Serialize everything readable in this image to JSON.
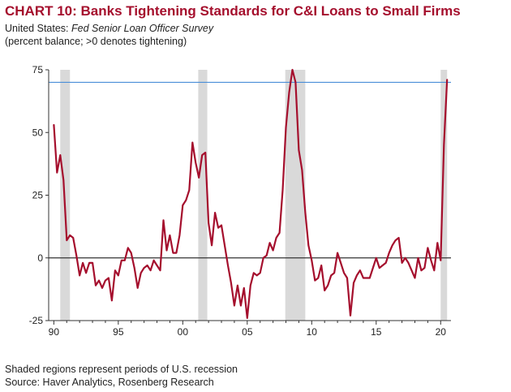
{
  "header": {
    "title": "CHART 10: Banks Tightening Standards for C&I Loans to Small Firms",
    "subtitle_prefix": "United States: ",
    "subtitle_source": "Fed Senior Loan Officer Survey",
    "subtitle_units": "(percent balance; >0 denotes tightening)"
  },
  "footer": {
    "note": "Shaded regions represent periods of U.S. recession",
    "source": "Source: Haver Analytics, Rosenberg Research"
  },
  "colors": {
    "series": "#a50f2d",
    "reference_line": "#4a8ed8",
    "recession": "#d9d9d9",
    "zero_line": "#333333",
    "title": "#a50f2d"
  },
  "chart_data": {
    "type": "line",
    "title": "CHART 10: Banks Tightening Standards for C&I Loans to Small Firms",
    "xlabel": "",
    "ylabel": "",
    "xlim": [
      1989.6,
      2020.8
    ],
    "ylim": [
      -25,
      75
    ],
    "x_tick_labels": [
      "90",
      "95",
      "00",
      "05",
      "10",
      "15",
      "20"
    ],
    "x_tick_values": [
      1990,
      1995,
      2000,
      2005,
      2010,
      2015,
      2020
    ],
    "y_tick_labels": [
      "75",
      "50",
      "25",
      "0",
      "-25"
    ],
    "y_tick_values": [
      75,
      50,
      25,
      0,
      -25
    ],
    "reference_line": 70,
    "recessions": [
      [
        1990.5,
        1991.25
      ],
      [
        2001.2,
        2001.9
      ],
      [
        2007.95,
        2009.5
      ],
      [
        2020.0,
        2020.5
      ]
    ],
    "series": [
      {
        "x": [
          1990.0,
          1990.25,
          1990.5,
          1990.75,
          1991.0,
          1991.25,
          1991.5,
          1991.75,
          1992.0,
          1992.25,
          1992.5,
          1992.75,
          1993.0,
          1993.25,
          1993.5,
          1993.75,
          1994.0,
          1994.25,
          1994.5,
          1994.75,
          1995.0,
          1995.25,
          1995.5,
          1995.75,
          1996.0,
          1996.25,
          1996.5,
          1996.75,
          1997.0,
          1997.25,
          1997.5,
          1997.75,
          1998.0,
          1998.25,
          1998.5,
          1998.75,
          1999.0,
          1999.25,
          1999.5,
          1999.75,
          2000.0,
          2000.25,
          2000.5,
          2000.75,
          2001.0,
          2001.25,
          2001.5,
          2001.75,
          2002.0,
          2002.25,
          2002.5,
          2002.75,
          2003.0,
          2003.25,
          2003.5,
          2003.75,
          2004.0,
          2004.25,
          2004.5,
          2004.75,
          2005.0,
          2005.25,
          2005.5,
          2005.75,
          2006.0,
          2006.25,
          2006.5,
          2006.75,
          2007.0,
          2007.25,
          2007.5,
          2007.75,
          2008.0,
          2008.25,
          2008.5,
          2008.75,
          2009.0,
          2009.25,
          2009.5,
          2009.75,
          2010.0,
          2010.25,
          2010.5,
          2010.75,
          2011.0,
          2011.25,
          2011.5,
          2011.75,
          2012.0,
          2012.25,
          2012.5,
          2012.75,
          2013.0,
          2013.25,
          2013.5,
          2013.75,
          2014.0,
          2014.25,
          2014.5,
          2014.75,
          2015.0,
          2015.25,
          2015.5,
          2015.75,
          2016.0,
          2016.25,
          2016.5,
          2016.75,
          2017.0,
          2017.25,
          2017.5,
          2017.75,
          2018.0,
          2018.25,
          2018.5,
          2018.75,
          2019.0,
          2019.25,
          2019.5,
          2019.75,
          2020.0,
          2020.25,
          2020.5
        ],
        "values": [
          53,
          34,
          41,
          31,
          7,
          9,
          8,
          1,
          -7,
          -2,
          -6,
          -2,
          -2,
          -11,
          -9,
          -12,
          -9,
          -8,
          -17,
          -5,
          -7,
          -1,
          -1,
          4,
          2,
          -4,
          -12,
          -6,
          -4,
          -3,
          -5,
          -1,
          -3,
          -5,
          15,
          3,
          9,
          2,
          2,
          9,
          21,
          23,
          27,
          46,
          38,
          32,
          41,
          42,
          14,
          5,
          18,
          12,
          13,
          5,
          -3,
          -10,
          -19,
          -11,
          -19,
          -12,
          -24,
          -11,
          -6,
          -7,
          -6,
          0,
          1,
          6,
          3,
          8,
          10,
          27,
          52,
          66,
          75,
          70,
          43,
          35,
          18,
          5,
          -1,
          -9,
          -8,
          -3,
          -13,
          -11,
          -7,
          -6,
          2,
          -2,
          -6,
          -8,
          -23,
          -10,
          -7,
          -5,
          -8,
          -8,
          -8,
          -4,
          0,
          -4,
          -3,
          -2,
          2,
          5,
          7,
          8,
          -2,
          0,
          -2,
          -5,
          -8,
          0,
          -5,
          -4,
          4,
          -1,
          -5,
          6,
          -1,
          45,
          71
        ]
      }
    ]
  }
}
